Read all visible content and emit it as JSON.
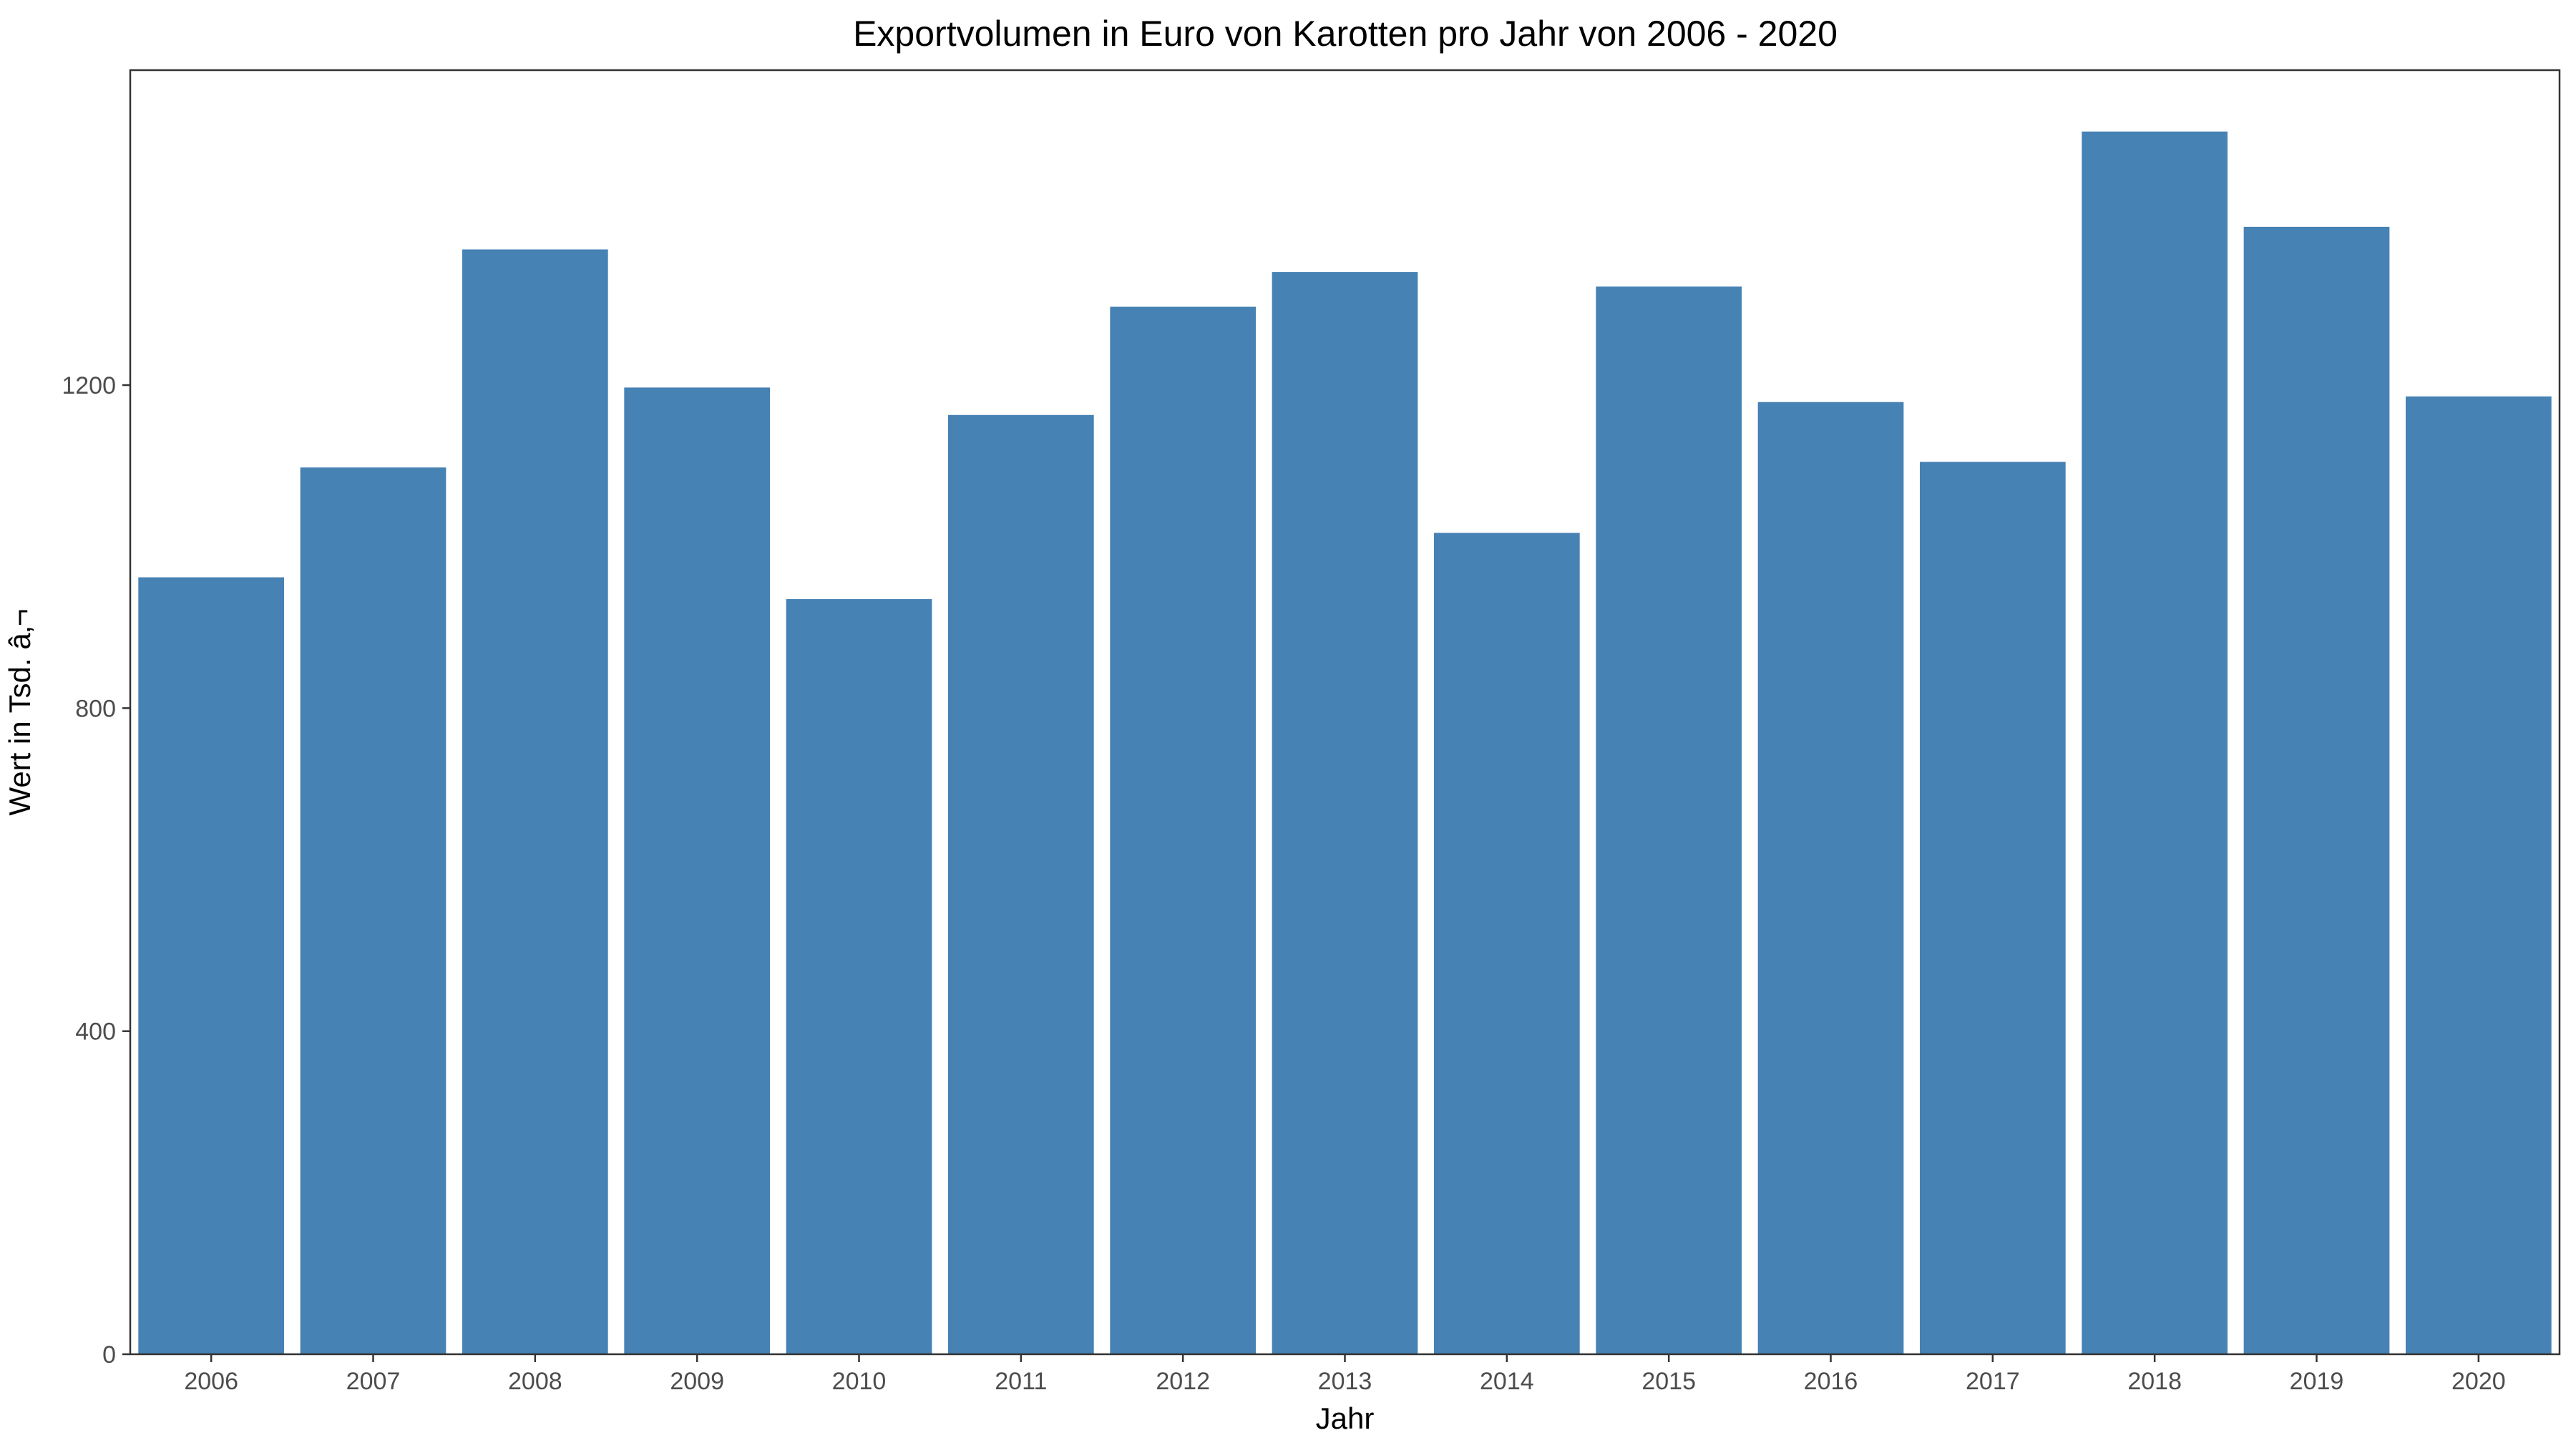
{
  "chart_data": {
    "type": "bar",
    "title": "Exportvolumen in Euro von Karotten pro Jahr von 2006 - 2020",
    "xlabel": "Jahr",
    "ylabel": "Wert in Tsd. â‚¬",
    "categories": [
      "2006",
      "2007",
      "2008",
      "2009",
      "2010",
      "2011",
      "2012",
      "2013",
      "2014",
      "2015",
      "2016",
      "2017",
      "2018",
      "2019",
      "2020"
    ],
    "series": [
      {
        "values": [
          962,
          1098,
          1368,
          1197,
          935,
          1163,
          1297,
          1340,
          1017,
          1322,
          1179,
          1105,
          1514,
          1396,
          1186
        ]
      }
    ],
    "ylim": [
      0,
      1590
    ],
    "yticks": [
      0,
      400,
      800,
      1200
    ],
    "grid": false,
    "legend": "none",
    "bar_color": "#4682b4",
    "frame_color": "#333333"
  }
}
